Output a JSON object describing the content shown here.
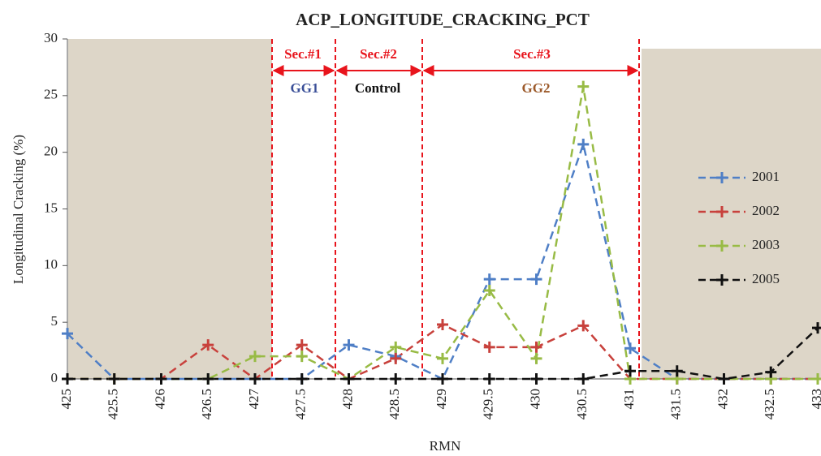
{
  "chart_data": {
    "type": "line",
    "title": "ACP_LONGITUDE_CRACKING_PCT",
    "x_label": "RMN",
    "y_label": "Longitudinal Cracking (%)",
    "annotations": {
      "sec1": "Sec.#1",
      "sec2": "Sec.#2",
      "sec3": "Sec.#3",
      "gg1": "GG1",
      "control": "Control",
      "gg2": "GG2"
    },
    "x": [
      425,
      425.5,
      426,
      426.5,
      427,
      427.5,
      428,
      428.5,
      429,
      429.5,
      430,
      430.5,
      431,
      431.5,
      432,
      432.5,
      433
    ],
    "xlim": [
      425,
      433
    ],
    "xticks": [
      425,
      425.5,
      426,
      426.5,
      427,
      427.5,
      428,
      428.5,
      429,
      429.5,
      430,
      430.5,
      431,
      431.5,
      432,
      432.5,
      433
    ],
    "ylim": [
      0,
      30
    ],
    "yticks": [
      0,
      5,
      10,
      15,
      20,
      25,
      30
    ],
    "legend": "right",
    "series": [
      {
        "name": "2001",
        "color": "#4f7fc6",
        "values": [
          4,
          0,
          0,
          0,
          0,
          0,
          3,
          2,
          0,
          8.8,
          8.8,
          20.7,
          2.7,
          0,
          0,
          0,
          0
        ]
      },
      {
        "name": "2002",
        "color": "#c8413c",
        "values": [
          0,
          0,
          0,
          3,
          0,
          3,
          0,
          1.8,
          4.8,
          2.8,
          2.8,
          4.7,
          0,
          0,
          0,
          0,
          0
        ]
      },
      {
        "name": "2003",
        "color": "#98bb45",
        "values": [
          0,
          0,
          0,
          0,
          2,
          2,
          0,
          2.8,
          1.8,
          7.8,
          1.8,
          25.8,
          0,
          0,
          0,
          0,
          0
        ]
      },
      {
        "name": "2005",
        "color": "#111111",
        "values": [
          0,
          0,
          0,
          0,
          0,
          0,
          0,
          0,
          0,
          0,
          0,
          0,
          0.7,
          0.7,
          0,
          0.6,
          4.5
        ]
      }
    ]
  }
}
